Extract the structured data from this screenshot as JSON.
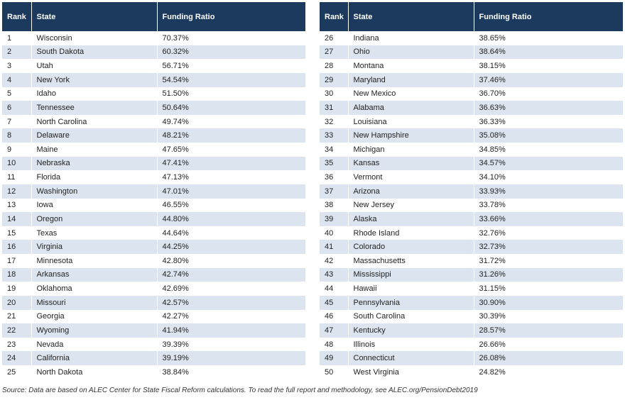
{
  "tables": [
    {
      "columns": [
        "Rank",
        "State",
        "Funding Ratio"
      ],
      "rows": [
        [
          1,
          "Wisconsin",
          "70.37%"
        ],
        [
          2,
          "South Dakota",
          "60.32%"
        ],
        [
          3,
          "Utah",
          "56.71%"
        ],
        [
          4,
          "New York",
          "54.54%"
        ],
        [
          5,
          "Idaho",
          "51.50%"
        ],
        [
          6,
          "Tennessee",
          "50.64%"
        ],
        [
          7,
          "North Carolina",
          "49.74%"
        ],
        [
          8,
          "Delaware",
          "48.21%"
        ],
        [
          9,
          "Maine",
          "47.65%"
        ],
        [
          10,
          "Nebraska",
          "47.41%"
        ],
        [
          11,
          "Florida",
          "47.13%"
        ],
        [
          12,
          "Washington",
          "47.01%"
        ],
        [
          13,
          "Iowa",
          "46.55%"
        ],
        [
          14,
          "Oregon",
          "44.80%"
        ],
        [
          15,
          "Texas",
          "44.64%"
        ],
        [
          16,
          "Virginia",
          "44.25%"
        ],
        [
          17,
          "Minnesota",
          "42.80%"
        ],
        [
          18,
          "Arkansas",
          "42.74%"
        ],
        [
          19,
          "Oklahoma",
          "42.69%"
        ],
        [
          20,
          "Missouri",
          "42.57%"
        ],
        [
          21,
          "Georgia",
          "42.27%"
        ],
        [
          22,
          "Wyoming",
          "41.94%"
        ],
        [
          23,
          "Nevada",
          "39.39%"
        ],
        [
          24,
          "California",
          "39.19%"
        ],
        [
          25,
          "North Dakota",
          "38.84%"
        ]
      ]
    },
    {
      "columns": [
        "Rank",
        "State",
        "Funding Ratio"
      ],
      "rows": [
        [
          26,
          "Indiana",
          "38.65%"
        ],
        [
          27,
          "Ohio",
          "38.64%"
        ],
        [
          28,
          "Montana",
          "38.15%"
        ],
        [
          29,
          "Maryland",
          "37.46%"
        ],
        [
          30,
          "New Mexico",
          "36.70%"
        ],
        [
          31,
          "Alabama",
          "36.63%"
        ],
        [
          32,
          "Louisiana",
          "36.33%"
        ],
        [
          33,
          "New Hampshire",
          "35.08%"
        ],
        [
          34,
          "Michigan",
          "34.85%"
        ],
        [
          35,
          "Kansas",
          "34.57%"
        ],
        [
          36,
          "Vermont",
          "34.10%"
        ],
        [
          37,
          "Arizona",
          "33.93%"
        ],
        [
          38,
          "New Jersey",
          "33.78%"
        ],
        [
          39,
          "Alaska",
          "33.66%"
        ],
        [
          40,
          "Rhode Island",
          "32.76%"
        ],
        [
          41,
          "Colorado",
          "32.73%"
        ],
        [
          42,
          "Massachusetts",
          "31.72%"
        ],
        [
          43,
          "Mississippi",
          "31.26%"
        ],
        [
          44,
          "Hawaii",
          "31.15%"
        ],
        [
          45,
          "Pennsylvania",
          "30.90%"
        ],
        [
          46,
          "South Carolina",
          "30.39%"
        ],
        [
          47,
          "Kentucky",
          "28.57%"
        ],
        [
          48,
          "Illinois",
          "26.66%"
        ],
        [
          49,
          "Connecticut",
          "26.08%"
        ],
        [
          50,
          "West Virginia",
          "24.82%"
        ]
      ]
    }
  ],
  "source": "Source: Data are based on ALEC Center for State Fiscal Reform calculations. To read the full report and methodology, see ALEC.org/PensionDebt2019"
}
